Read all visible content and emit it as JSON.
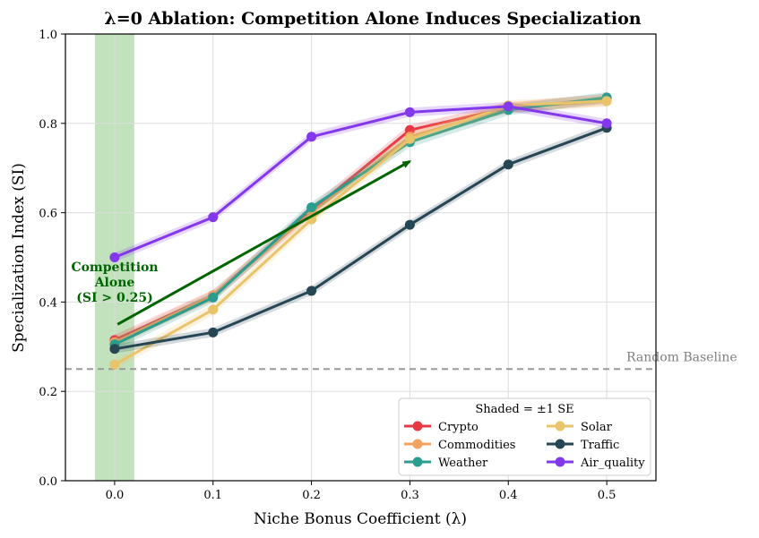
{
  "chart_data": {
    "type": "line",
    "title": "λ=0 Ablation: Competition Alone Induces Specialization",
    "xlabel": "Niche Bonus Coefficient (λ)",
    "ylabel": "Specialization Index (SI)",
    "xlim": [
      -0.05,
      0.55
    ],
    "ylim": [
      0.0,
      1.0
    ],
    "x": [
      0.0,
      0.1,
      0.2,
      0.3,
      0.4,
      0.5
    ],
    "x_ticks": [
      0.0,
      0.1,
      0.2,
      0.3,
      0.4,
      0.5
    ],
    "x_tick_labels": [
      "0.0",
      "0.1",
      "0.2",
      "0.3",
      "0.4",
      "0.5"
    ],
    "y_ticks": [
      0.0,
      0.2,
      0.4,
      0.6,
      0.8,
      1.0
    ],
    "y_tick_labels": [
      "0.0",
      "0.2",
      "0.4",
      "0.6",
      "0.8",
      "1.0"
    ],
    "grid": true,
    "series": [
      {
        "name": "Crypto",
        "color": "#e63946",
        "values": [
          0.315,
          0.415,
          0.605,
          0.785,
          0.835,
          0.855
        ],
        "se": 0.012
      },
      {
        "name": "Commodities",
        "color": "#f4a261",
        "values": [
          0.31,
          0.415,
          0.6,
          0.77,
          0.835,
          0.85
        ],
        "se": 0.012
      },
      {
        "name": "Weather",
        "color": "#2a9d8f",
        "values": [
          0.305,
          0.41,
          0.612,
          0.758,
          0.83,
          0.858
        ],
        "se": 0.012
      },
      {
        "name": "Solar",
        "color": "#e9c46a",
        "values": [
          0.26,
          0.383,
          0.585,
          0.765,
          0.84,
          0.85
        ],
        "se": 0.012
      },
      {
        "name": "Traffic",
        "color": "#264653",
        "values": [
          0.295,
          0.332,
          0.425,
          0.573,
          0.708,
          0.79
        ],
        "se": 0.01
      },
      {
        "name": "Air_quality",
        "color": "#8338ec",
        "values": [
          0.5,
          0.59,
          0.77,
          0.825,
          0.838,
          0.8
        ],
        "se": 0.01
      }
    ],
    "shaded_region": {
      "x_start": -0.02,
      "x_end": 0.02,
      "color": "#a8d5a2"
    },
    "baseline": {
      "y": 0.25,
      "label": "Random Baseline",
      "color": "#999999"
    },
    "annotation": {
      "lines": [
        "Competition",
        "Alone",
        "(SI > 0.25)"
      ],
      "color": "#006400",
      "arrow_from": [
        0.003,
        0.35
      ],
      "arrow_to": [
        0.3,
        0.715
      ]
    },
    "legend": {
      "title": "Shaded = ±1 SE",
      "placement": "lower-right",
      "columns": 2
    }
  }
}
